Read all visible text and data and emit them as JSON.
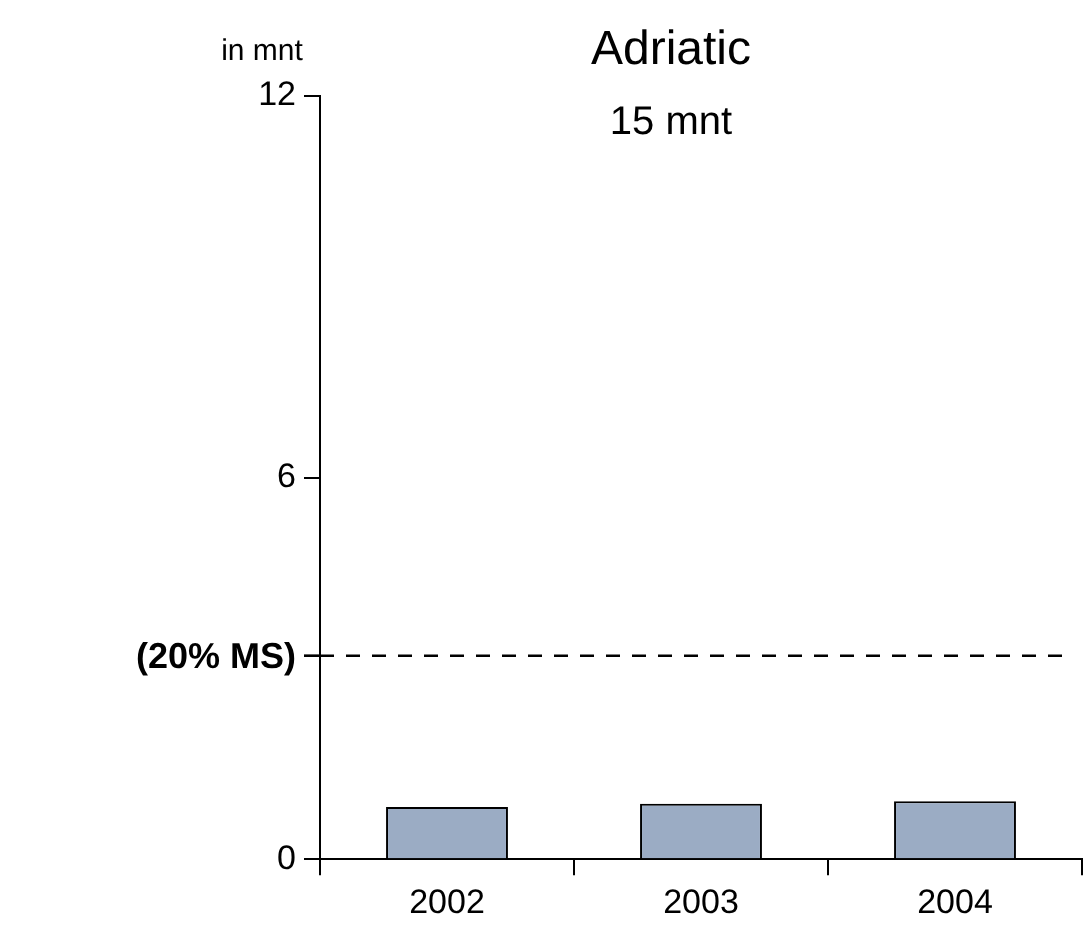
{
  "chart_data": {
    "type": "bar",
    "title": "Adriatic",
    "subtitle": "15 mnt",
    "ylabel": "in mnt",
    "categories": [
      "2002",
      "2003",
      "2004"
    ],
    "values": [
      0.82,
      0.87,
      0.91
    ],
    "color": "#9bacc4",
    "ylim": [
      0,
      12
    ],
    "yticks": [
      0,
      6,
      12
    ],
    "grid": false,
    "ref_lines": [
      {
        "axis": "y",
        "value": 3.2,
        "label": "(20% MS)",
        "line_style": "dashed",
        "color": "#000000"
      }
    ]
  }
}
